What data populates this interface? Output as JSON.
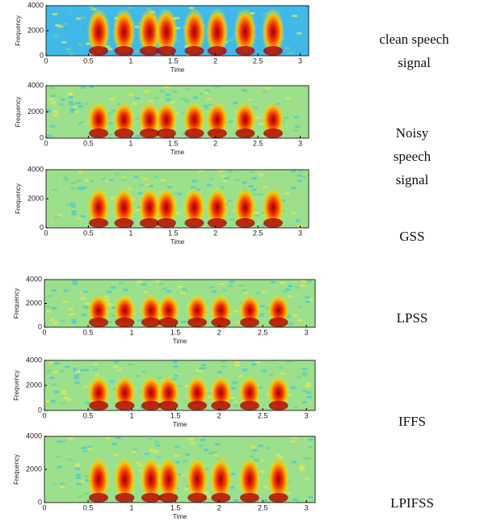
{
  "chart_data": [
    {
      "type": "spectrogram",
      "xlabel": "Time",
      "ylabel": "Frequency",
      "xlim": [
        0,
        3.1
      ],
      "ylim": [
        0,
        4000
      ],
      "xticks": [
        0,
        0.5,
        1,
        1.5,
        2,
        2.5,
        3
      ],
      "yticks": [
        0,
        2000,
        4000
      ],
      "label": "clean speech signal"
    },
    {
      "type": "spectrogram",
      "xlabel": "Time",
      "ylabel": "Frequency",
      "xlim": [
        0,
        3.1
      ],
      "ylim": [
        0,
        4000
      ],
      "xticks": [
        0,
        0.5,
        1,
        1.5,
        2,
        2.5,
        3
      ],
      "yticks": [
        0,
        2000,
        4000
      ],
      "label": "Noisy speech signal"
    },
    {
      "type": "spectrogram",
      "xlabel": "Time",
      "ylabel": "Frequency",
      "xlim": [
        0,
        3.1
      ],
      "ylim": [
        0,
        4000
      ],
      "xticks": [
        0,
        0.5,
        1,
        1.5,
        2,
        2.5,
        3
      ],
      "yticks": [
        0,
        2000,
        4000
      ],
      "label": "GSS"
    },
    {
      "type": "spectrogram",
      "xlabel": "Time",
      "ylabel": "Frequency",
      "xlim": [
        0,
        3.1
      ],
      "ylim": [
        0,
        4000
      ],
      "xticks": [
        0,
        0.5,
        1,
        1.5,
        2,
        2.5,
        3
      ],
      "yticks": [
        0,
        2000,
        4000
      ],
      "label": "LPSS"
    },
    {
      "type": "spectrogram",
      "xlabel": "Time",
      "ylabel": "Frequency",
      "xlim": [
        0,
        3.1
      ],
      "ylim": [
        0,
        4000
      ],
      "xticks": [
        0,
        0.5,
        1,
        1.5,
        2,
        2.5,
        3
      ],
      "yticks": [
        0,
        2000,
        4000
      ],
      "label": "IFFS"
    },
    {
      "type": "spectrogram",
      "xlabel": "Time",
      "ylabel": "Frequency",
      "xlim": [
        0,
        3.1
      ],
      "ylim": [
        0,
        4000
      ],
      "xticks": [
        0,
        0.5,
        1,
        1.5,
        2,
        2.5,
        3
      ],
      "yticks": [
        0,
        2000,
        4000
      ],
      "label": "LPIFSS"
    }
  ]
}
